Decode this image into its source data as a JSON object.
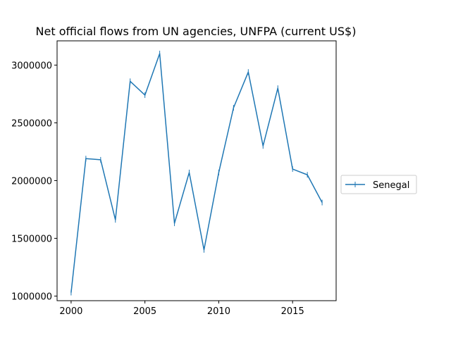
{
  "chart_data": {
    "type": "line",
    "title": "Net official flows from UN agencies, UNFPA (current US$)",
    "xlabel": "",
    "ylabel": "",
    "xlim": [
      1999.05,
      2017.95
    ],
    "ylim": [
      960000,
      3210000
    ],
    "xticks": [
      2000,
      2005,
      2010,
      2015
    ],
    "yticks": [
      1000000,
      1500000,
      2000000,
      2500000,
      3000000
    ],
    "grid": false,
    "legend_position": "center-right, outside plot",
    "x": [
      2000,
      2001,
      2002,
      2003,
      2004,
      2005,
      2006,
      2007,
      2008,
      2009,
      2010,
      2011,
      2012,
      2013,
      2014,
      2015,
      2016,
      2017
    ],
    "series": [
      {
        "name": "Senegal",
        "color": "#1f77b4",
        "marker": "vertical-line",
        "values": [
          1030000,
          2190000,
          2180000,
          1660000,
          2860000,
          2740000,
          3100000,
          1630000,
          2070000,
          1400000,
          2070000,
          2630000,
          2940000,
          2300000,
          2800000,
          2100000,
          2050000,
          1810000
        ]
      }
    ]
  }
}
